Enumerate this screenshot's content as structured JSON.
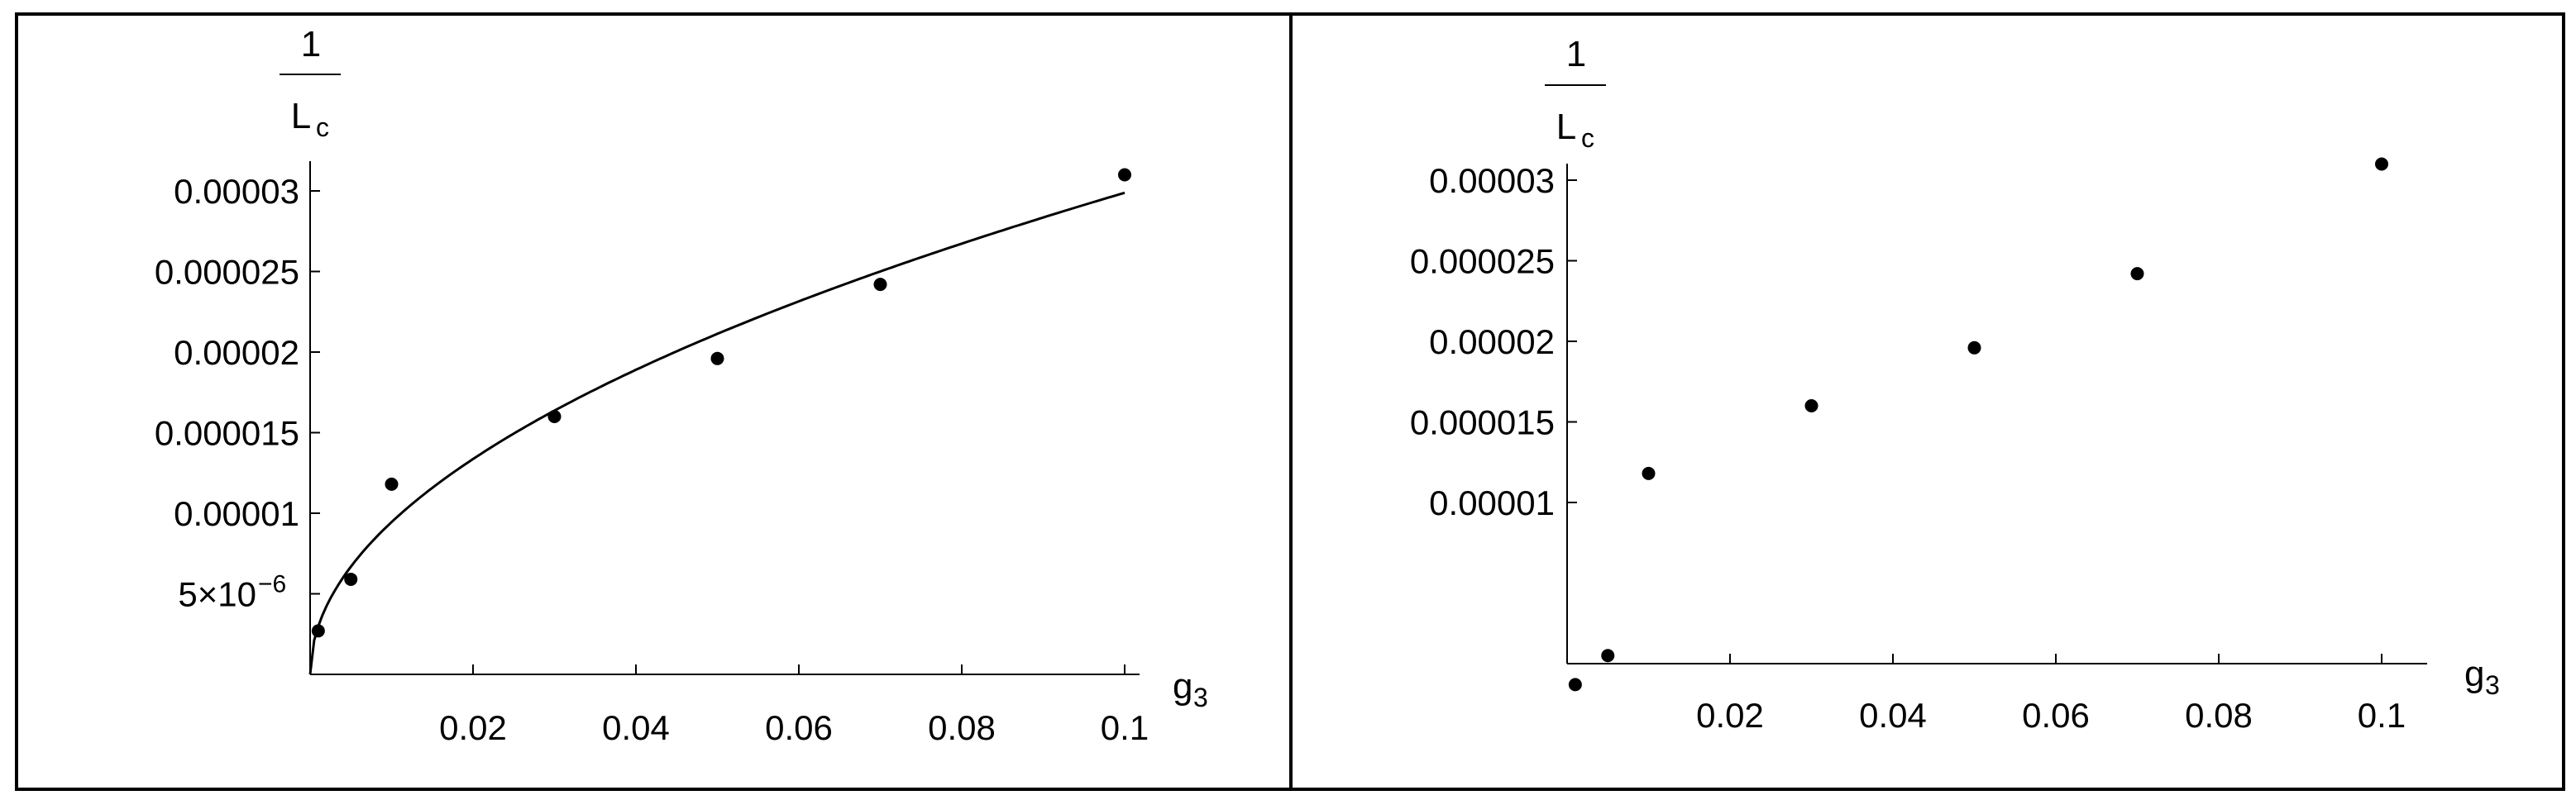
{
  "chart_data": [
    {
      "type": "scatter",
      "ylabel_numerator": "1",
      "ylabel_base": "L",
      "ylabel_sub": "c",
      "xlabel_base": "g",
      "xlabel_sub": "3",
      "xlim": [
        0,
        0.1
      ],
      "ylim": [
        0,
        3e-05
      ],
      "x_ticks": [
        "0.02",
        "0.04",
        "0.06",
        "0.08",
        "0.1"
      ],
      "y_ticks": [
        "5×10",
        "0.00001",
        "0.000015",
        "0.00002",
        "0.000025",
        "0.00003"
      ],
      "y_tick_exponent": "−6",
      "series": [
        {
          "points": [
            {
              "x": 0.001,
              "y": 2.7e-06
            },
            {
              "x": 0.005,
              "y": 5.9e-06
            },
            {
              "x": 0.01,
              "y": 1.18e-05
            },
            {
              "x": 0.03,
              "y": 1.6e-05
            },
            {
              "x": 0.05,
              "y": 1.96e-05
            },
            {
              "x": 0.07,
              "y": 2.42e-05
            },
            {
              "x": 0.1,
              "y": 3.1e-05
            }
          ]
        }
      ],
      "fit_curve": {
        "form": "a*sqrt(x)",
        "a": 9.45e-05
      }
    },
    {
      "type": "scatter",
      "ylabel_numerator": "1",
      "ylabel_base": "L",
      "ylabel_sub": "c",
      "xlabel_base": "g",
      "xlabel_sub": "3",
      "xlim": [
        0,
        0.1
      ],
      "ylim": [
        0,
        3e-05
      ],
      "x_ticks": [
        "0.02",
        "0.04",
        "0.06",
        "0.08",
        "0.1"
      ],
      "y_ticks": [
        "0.00001",
        "0.000015",
        "0.00002",
        "0.000025",
        "0.00003"
      ],
      "series": [
        {
          "points": [
            {
              "x": 0.001,
              "y": -1.3e-06
            },
            {
              "x": 0.005,
              "y": 5e-07
            },
            {
              "x": 0.01,
              "y": 1.18e-05
            },
            {
              "x": 0.03,
              "y": 1.6e-05
            },
            {
              "x": 0.05,
              "y": 1.96e-05
            },
            {
              "x": 0.07,
              "y": 2.42e-05
            },
            {
              "x": 0.1,
              "y": 3.1e-05
            }
          ]
        }
      ]
    }
  ]
}
